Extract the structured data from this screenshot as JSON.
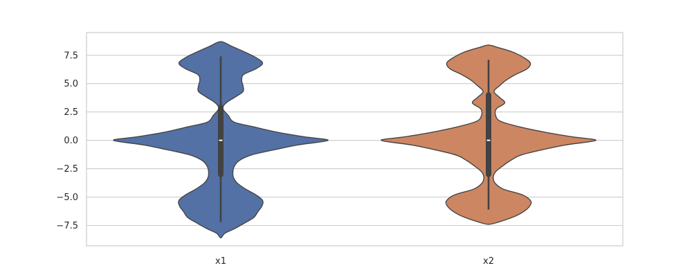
{
  "chart_data": {
    "type": "violin",
    "categories": [
      "x1",
      "x2"
    ],
    "colors": {
      "x1": "#5471a6",
      "x2": "#cd8662",
      "outline": "#454545",
      "grid": "#cccccc",
      "frame": "#cccccc"
    },
    "ylim": [
      -9.3,
      9.5
    ],
    "yticks": [
      7.5,
      5.0,
      2.5,
      0.0,
      -2.5,
      -5.0,
      -7.5
    ],
    "ytick_labels": [
      "7.5",
      "5.0",
      "2.5",
      "0.0",
      "−2.5",
      "−5.0",
      "−7.5"
    ],
    "grid": true,
    "violins": [
      {
        "name": "x1",
        "extent": [
          -8.6,
          8.7
        ],
        "whisker": [
          -7.2,
          7.4
        ],
        "box": [
          -3.0,
          2.9
        ],
        "median": 0.0,
        "density": [
          [
            -8.6,
            0.0
          ],
          [
            -8.2,
            0.06
          ],
          [
            -7.8,
            0.2
          ],
          [
            -7.3,
            0.35
          ],
          [
            -6.8,
            0.49
          ],
          [
            -6.3,
            0.55
          ],
          [
            -5.8,
            0.61
          ],
          [
            -5.3,
            0.62
          ],
          [
            -4.8,
            0.52
          ],
          [
            -4.3,
            0.37
          ],
          [
            -3.8,
            0.25
          ],
          [
            -3.3,
            0.19
          ],
          [
            -2.8,
            0.18
          ],
          [
            -2.3,
            0.2
          ],
          [
            -1.8,
            0.27
          ],
          [
            -1.3,
            0.45
          ],
          [
            -0.8,
            0.82
          ],
          [
            -0.4,
            1.15
          ],
          [
            0.0,
            1.59
          ],
          [
            0.3,
            1.25
          ],
          [
            0.7,
            0.85
          ],
          [
            1.2,
            0.48
          ],
          [
            1.6,
            0.2
          ],
          [
            2.2,
            0.11
          ],
          [
            2.8,
            0.03
          ],
          [
            3.3,
            0.08
          ],
          [
            3.8,
            0.21
          ],
          [
            4.3,
            0.33
          ],
          [
            4.8,
            0.33
          ],
          [
            5.3,
            0.31
          ],
          [
            5.8,
            0.34
          ],
          [
            6.3,
            0.52
          ],
          [
            6.8,
            0.62
          ],
          [
            7.3,
            0.52
          ],
          [
            7.8,
            0.35
          ],
          [
            8.3,
            0.16
          ],
          [
            8.7,
            0.0
          ]
        ]
      },
      {
        "name": "x2",
        "extent": [
          -7.4,
          8.4
        ],
        "whisker": [
          -6.1,
          7.1
        ],
        "box": [
          -3.0,
          4.0
        ],
        "median": 0.0,
        "density": [
          [
            -7.4,
            0.0
          ],
          [
            -7.2,
            0.15
          ],
          [
            -6.7,
            0.39
          ],
          [
            -6.2,
            0.54
          ],
          [
            -5.7,
            0.62
          ],
          [
            -5.3,
            0.62
          ],
          [
            -4.8,
            0.5
          ],
          [
            -4.3,
            0.22
          ],
          [
            -3.8,
            0.1
          ],
          [
            -3.3,
            0.07
          ],
          [
            -2.8,
            0.1
          ],
          [
            -2.3,
            0.2
          ],
          [
            -1.8,
            0.32
          ],
          [
            -1.3,
            0.48
          ],
          [
            -0.8,
            0.82
          ],
          [
            -0.4,
            1.15
          ],
          [
            0.0,
            1.59
          ],
          [
            0.3,
            1.25
          ],
          [
            0.7,
            0.85
          ],
          [
            1.2,
            0.45
          ],
          [
            1.7,
            0.17
          ],
          [
            2.3,
            0.1
          ],
          [
            2.8,
            0.12
          ],
          [
            3.3,
            0.24
          ],
          [
            3.8,
            0.16
          ],
          [
            4.3,
            0.08
          ],
          [
            4.8,
            0.16
          ],
          [
            5.3,
            0.26
          ],
          [
            5.8,
            0.4
          ],
          [
            6.3,
            0.57
          ],
          [
            6.8,
            0.62
          ],
          [
            7.3,
            0.52
          ],
          [
            7.8,
            0.35
          ],
          [
            8.2,
            0.13
          ],
          [
            8.4,
            0.0
          ]
        ]
      }
    ]
  }
}
